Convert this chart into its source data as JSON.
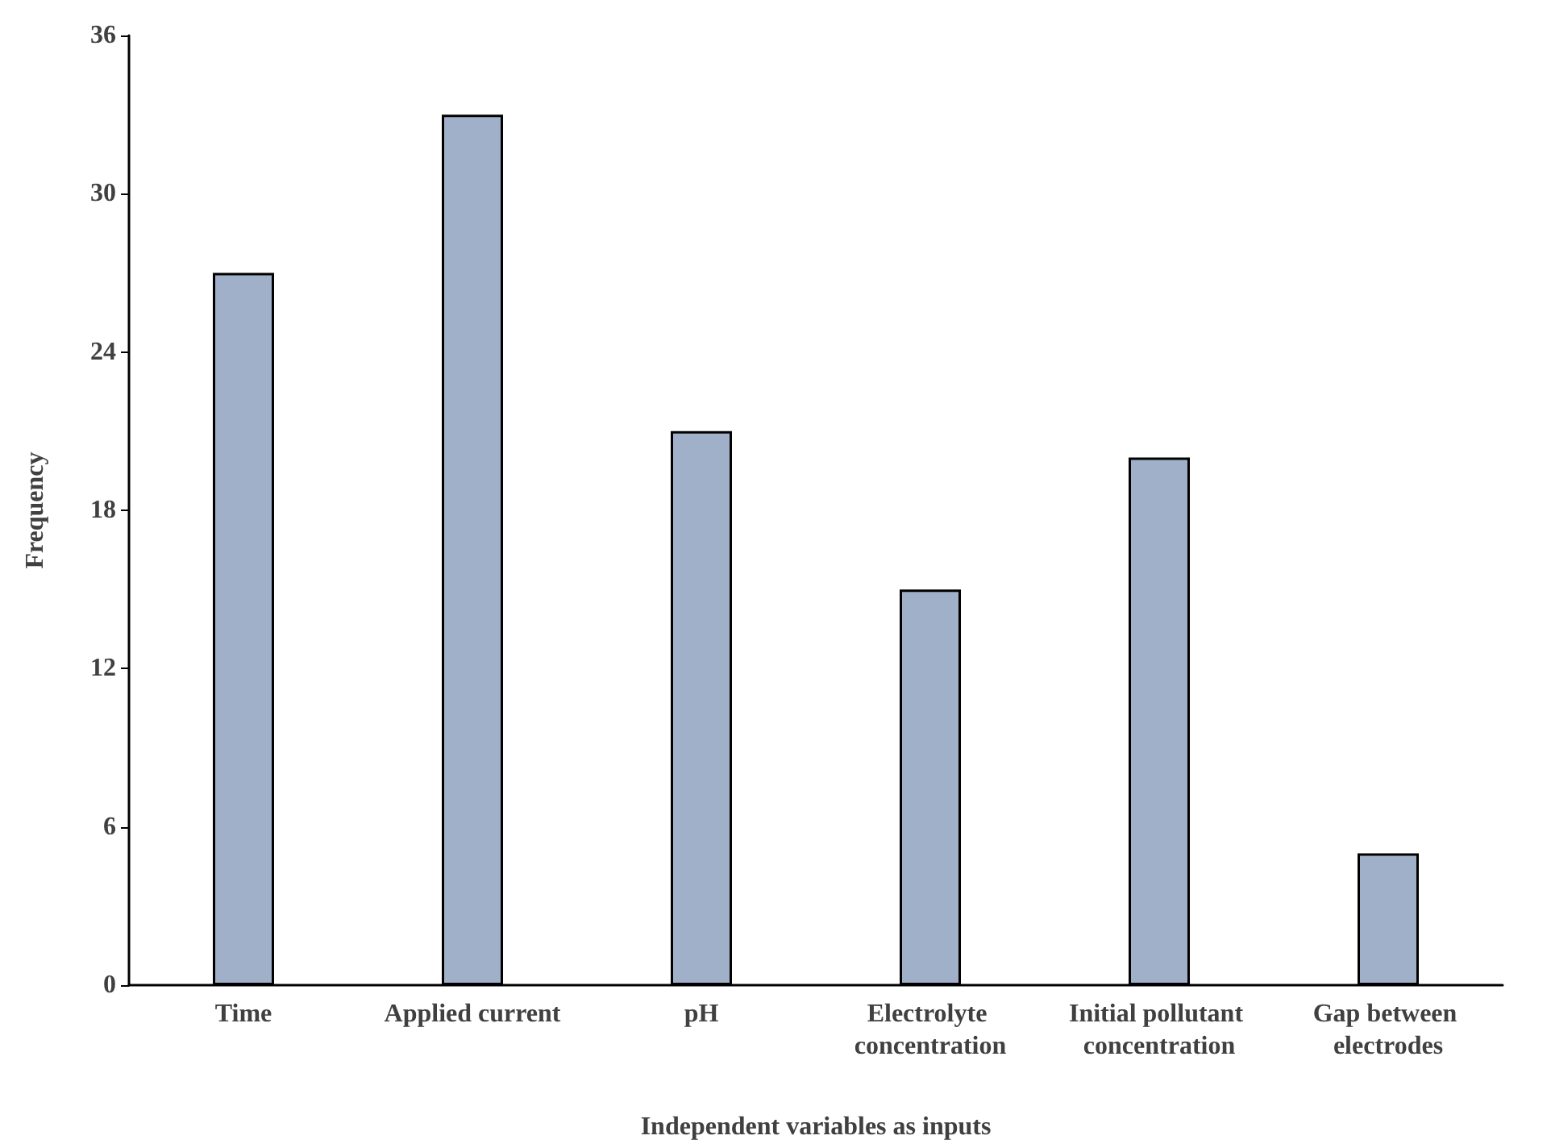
{
  "chart_data": {
    "type": "bar",
    "xlabel": "Independent variables as inputs",
    "ylabel": "Frequency",
    "categories": [
      "Time",
      "Applied current",
      "pH",
      "Electrolyte concentration",
      "Initial pollutant concentration",
      "Gap between electrodes"
    ],
    "values": [
      27,
      33,
      21,
      15,
      20,
      5
    ],
    "color": "#9fb0c8",
    "ylim": [
      0,
      36
    ],
    "yticks": [
      0,
      6,
      12,
      18,
      24,
      30,
      36
    ],
    "grid": false
  }
}
